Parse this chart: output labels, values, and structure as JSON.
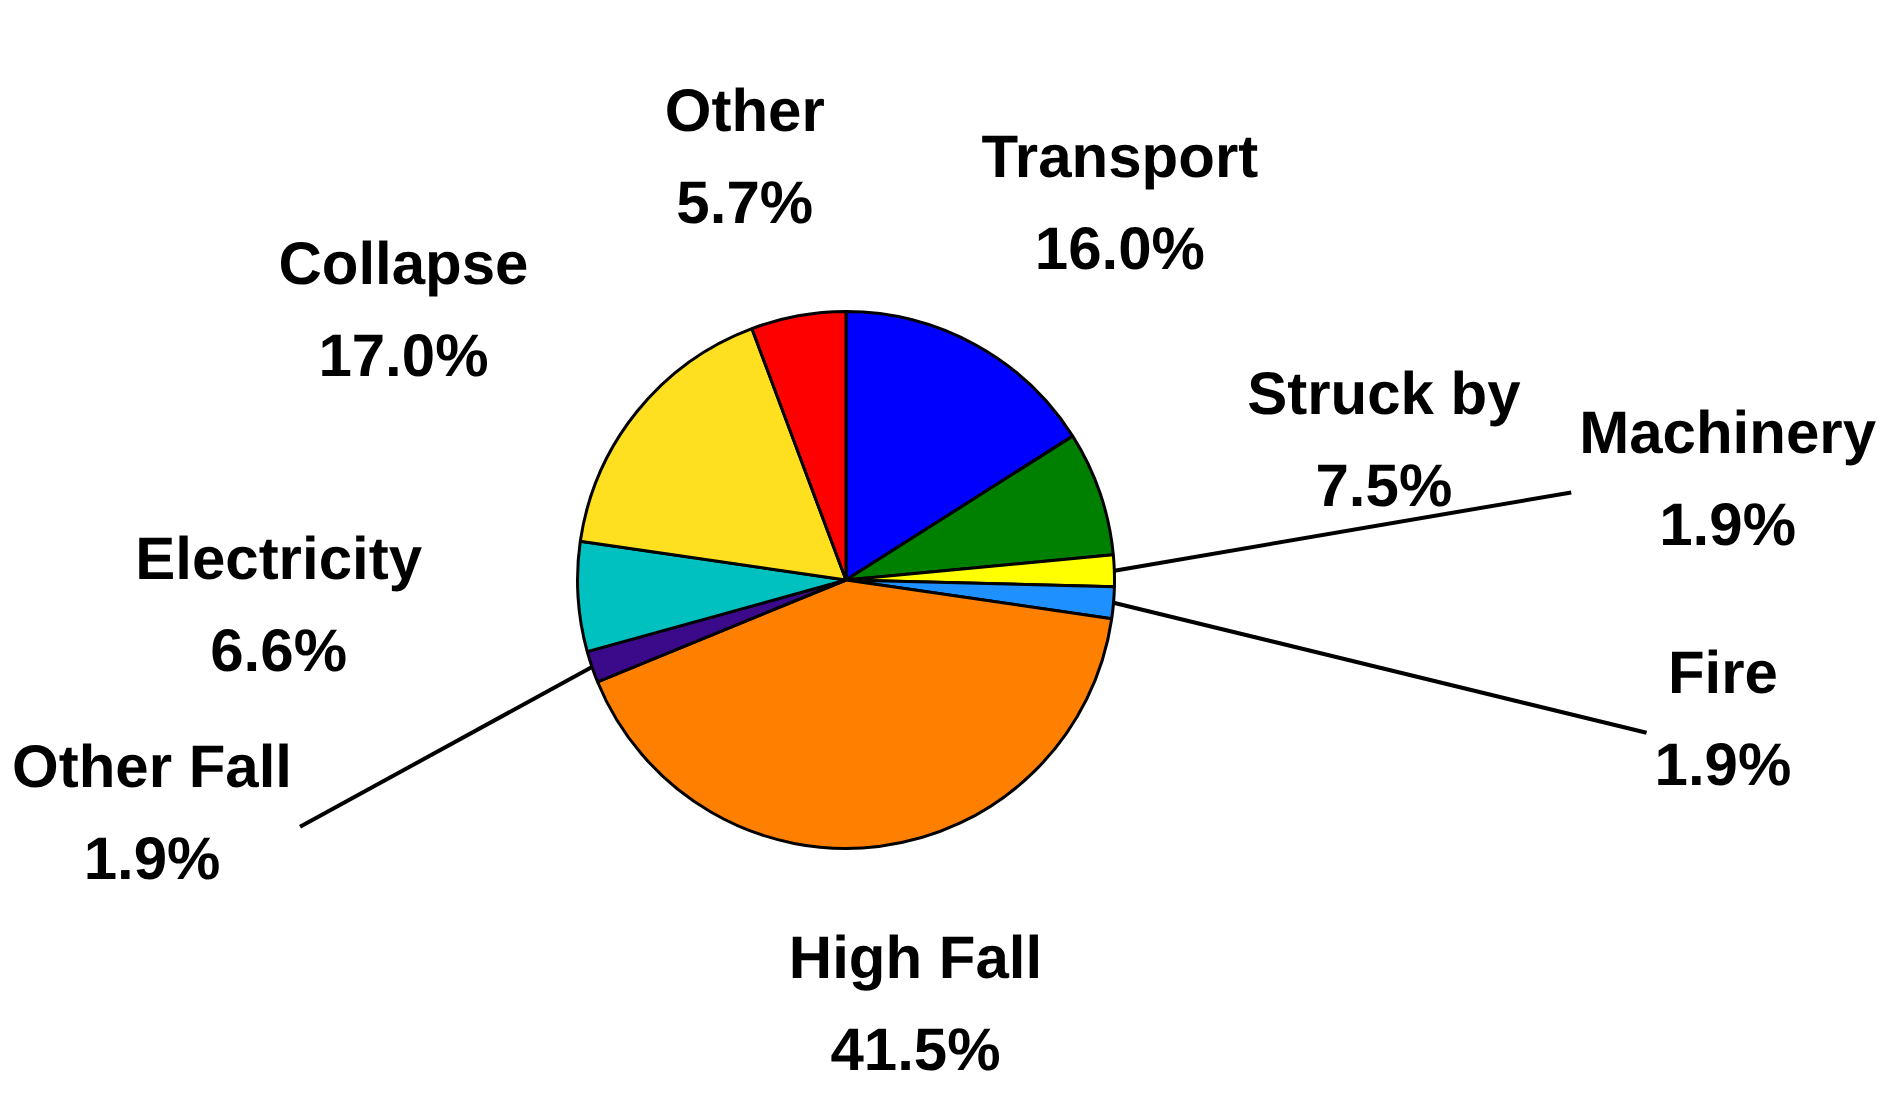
{
  "chart_data": {
    "type": "pie",
    "categories": [
      "Transport",
      "Struck by",
      "Machinery",
      "Fire",
      "High Fall",
      "Other Fall",
      "Electricity",
      "Collapse",
      "Other"
    ],
    "values": [
      16.0,
      7.5,
      1.9,
      1.9,
      41.5,
      1.9,
      6.6,
      17.0,
      5.7
    ],
    "value_labels": [
      "16.0%",
      "7.5%",
      "1.9%",
      "1.9%",
      "41.5%",
      "1.9%",
      "6.6%",
      "17.0%",
      "5.7%"
    ],
    "colors": [
      "#0000ff",
      "#008000",
      "#ffff00",
      "#1e90ff",
      "#ff8000",
      "#3a0a8a",
      "#00c0c0",
      "#ffe020",
      "#ff0000"
    ]
  }
}
